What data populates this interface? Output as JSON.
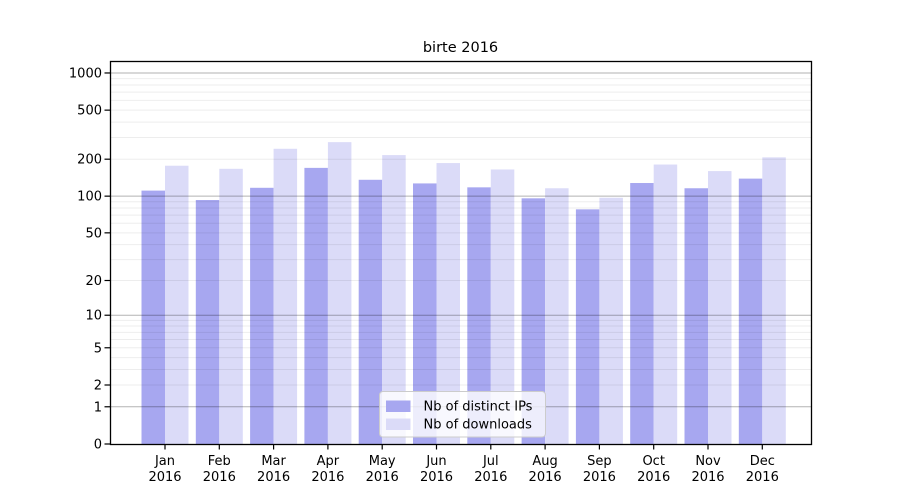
{
  "chart_data": {
    "type": "bar",
    "title": "birte 2016",
    "categories": [
      "Jan 2016",
      "Feb 2016",
      "Mar 2016",
      "Apr 2016",
      "May 2016",
      "Jun 2016",
      "Jul 2016",
      "Aug 2016",
      "Sep 2016",
      "Oct 2016",
      "Nov 2016",
      "Dec 2016"
    ],
    "series": [
      {
        "name": "Nb of distinct IPs",
        "color": "#a7a7f0",
        "values": [
          111,
          93,
          117,
          170,
          136,
          127,
          118,
          96,
          78,
          128,
          116,
          139
        ]
      },
      {
        "name": "Nb of downloads",
        "color": "#dbdbf8",
        "values": [
          177,
          167,
          243,
          275,
          216,
          186,
          165,
          116,
          97,
          181,
          160,
          207
        ]
      }
    ],
    "yscale": "log1p",
    "y_ticks": [
      0,
      1,
      2,
      5,
      10,
      20,
      50,
      100,
      200,
      500,
      1000
    ],
    "ylim": [
      0,
      1250
    ],
    "grid": true,
    "legend_position": "lower-center",
    "colors": {
      "major_grid": "#b3b3b3",
      "minor_grid": "#ededed",
      "frame": "#000000",
      "legend_border": "#cccccc",
      "legend_background": "#ffffff"
    }
  }
}
